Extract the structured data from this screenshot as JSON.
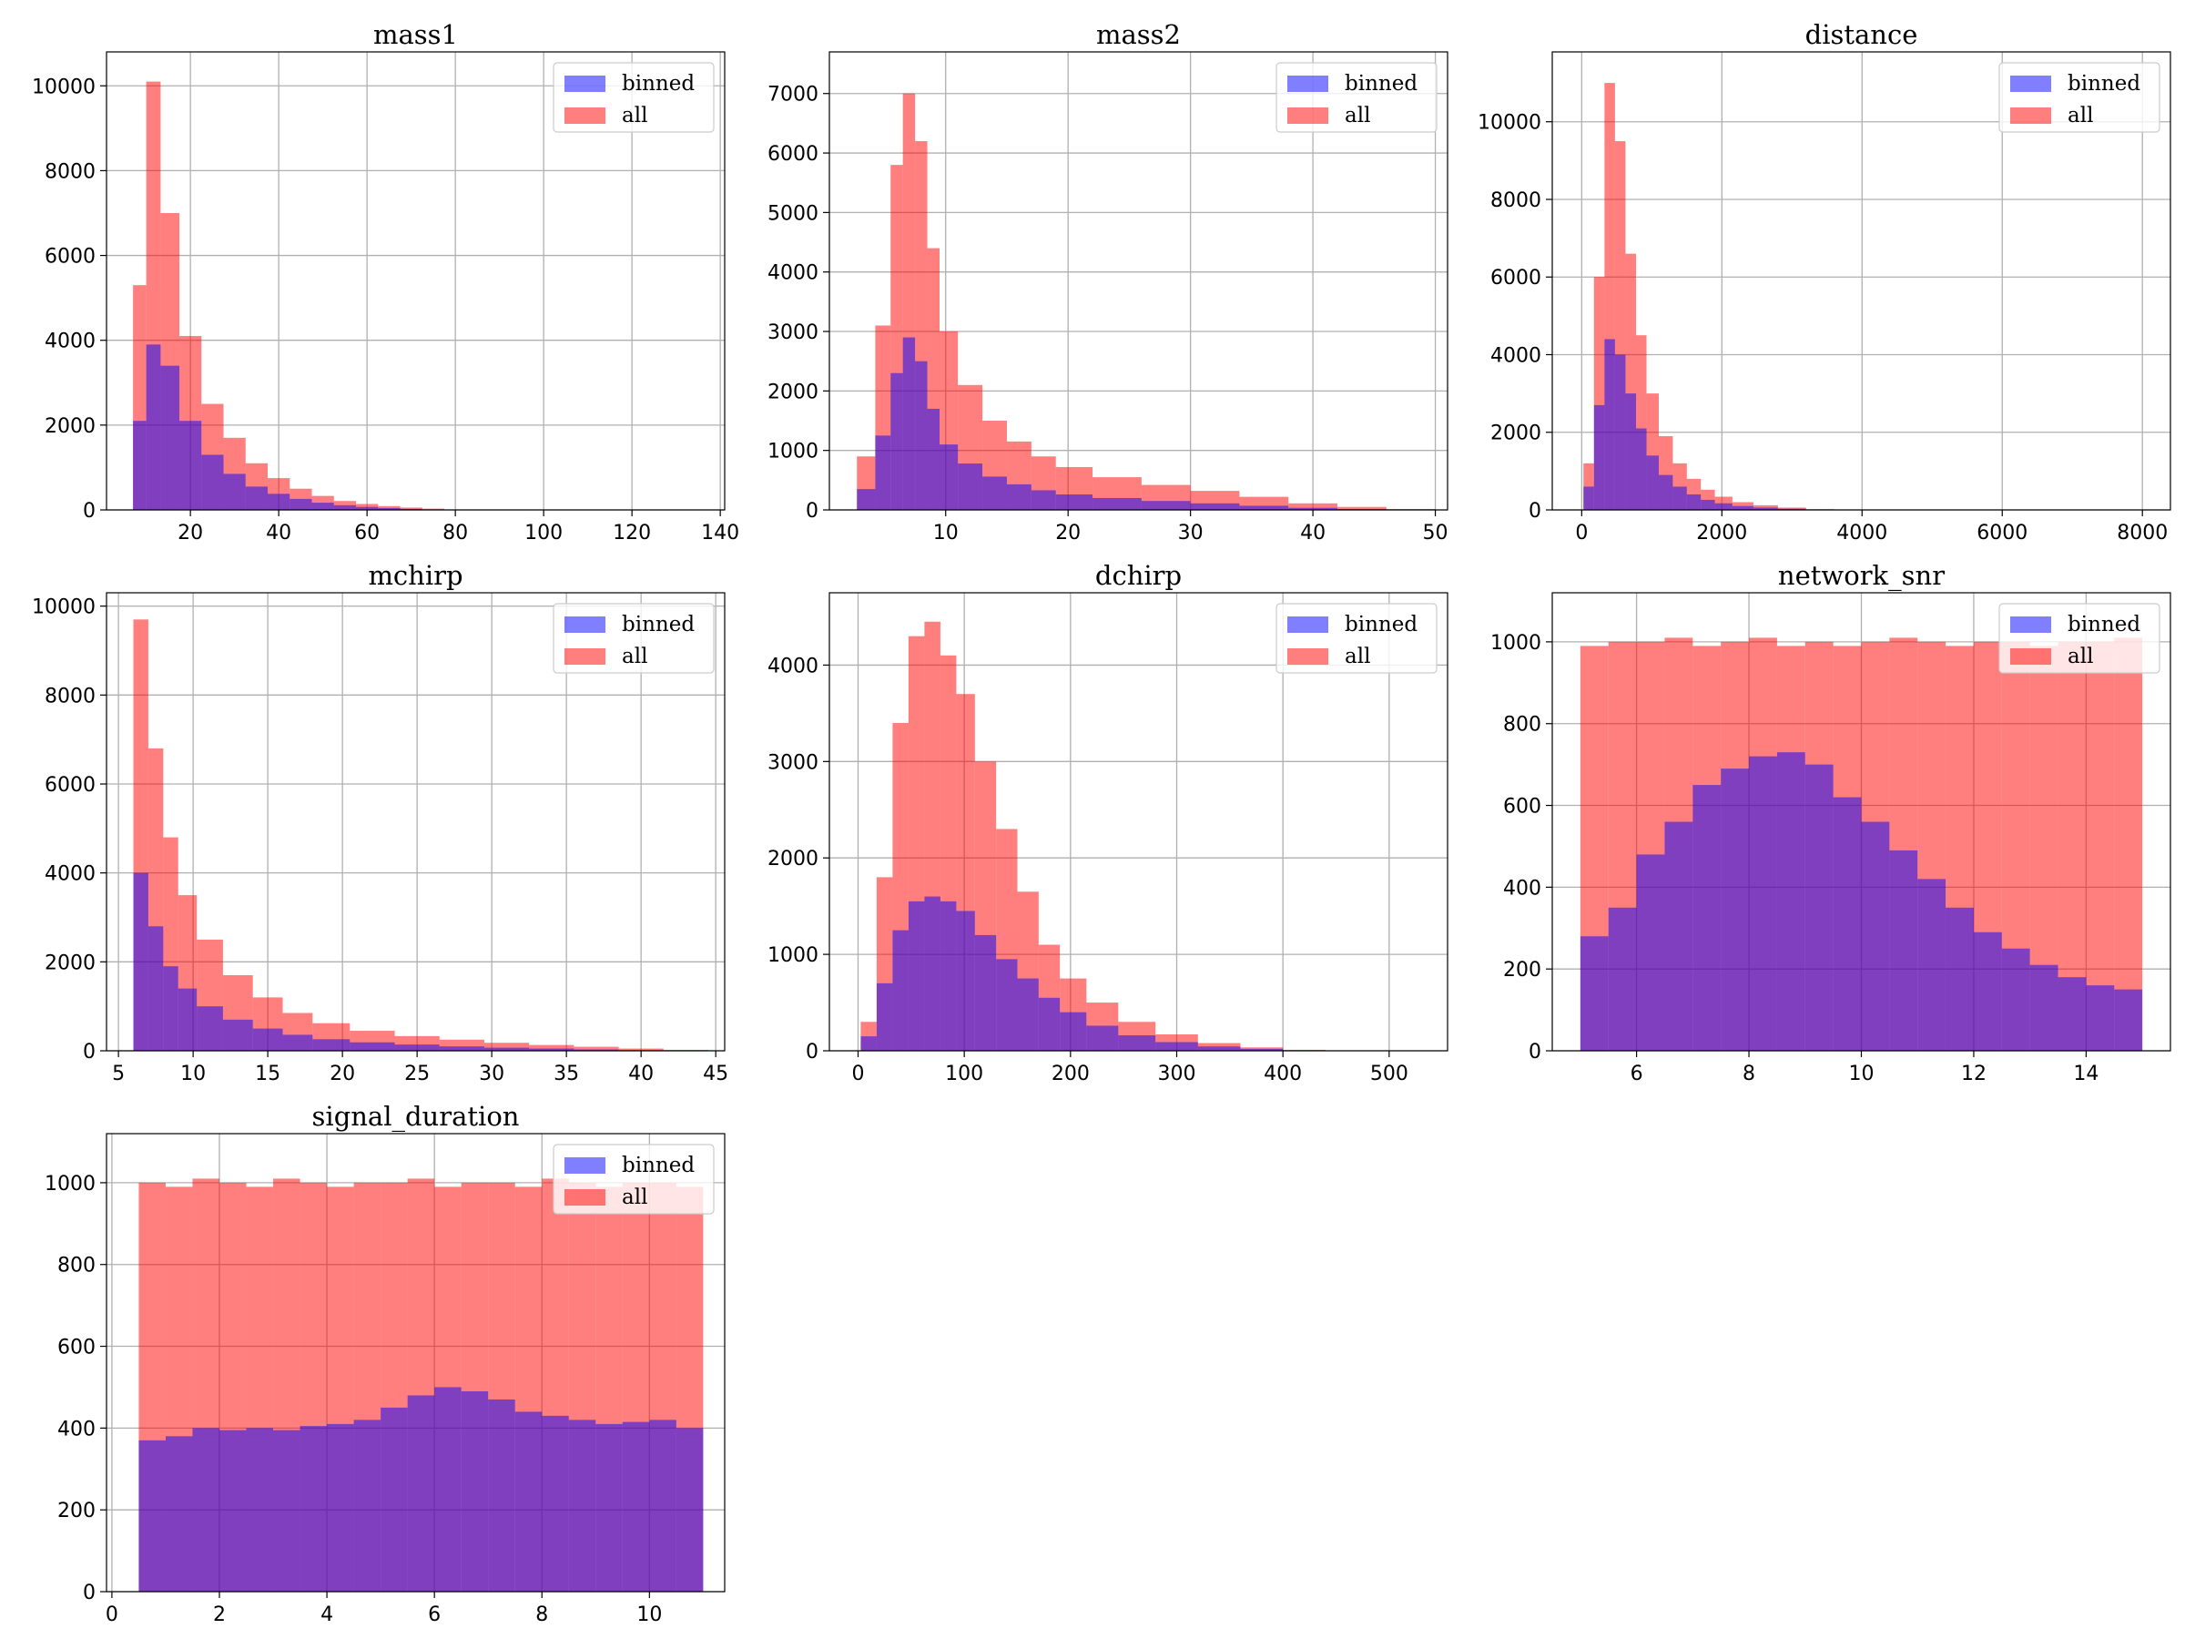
{
  "colors": {
    "binned": "#0000ff",
    "all": "#ff0000",
    "bar_opacity": 0.5
  },
  "legend": {
    "placement": "top-right",
    "entries": [
      "binned",
      "all"
    ]
  },
  "chart_data": [
    {
      "type": "bar",
      "title": "mass1",
      "grid": true,
      "xlim": [
        1,
        141
      ],
      "ylim": [
        0,
        10800
      ],
      "xticks": [
        20,
        40,
        60,
        80,
        100,
        120,
        140
      ],
      "yticks": [
        0,
        2000,
        4000,
        6000,
        8000,
        10000
      ],
      "x": [
        8.5,
        11.5,
        15,
        20,
        25,
        30,
        35,
        40,
        45,
        50,
        55,
        60,
        65,
        70,
        75,
        80
      ],
      "series": [
        {
          "name": "binned",
          "values": [
            2100,
            3900,
            3400,
            2100,
            1300,
            850,
            550,
            380,
            260,
            170,
            110,
            70,
            45,
            25,
            12,
            5
          ]
        },
        {
          "name": "all",
          "values": [
            5300,
            10100,
            7000,
            4100,
            2500,
            1700,
            1100,
            750,
            500,
            330,
            210,
            140,
            90,
            55,
            30,
            10
          ]
        }
      ]
    },
    {
      "type": "bar",
      "title": "mass2",
      "grid": true,
      "xlim": [
        0.5,
        51
      ],
      "ylim": [
        0,
        7700
      ],
      "xticks": [
        10,
        20,
        30,
        40,
        50
      ],
      "yticks": [
        0,
        1000,
        2000,
        3000,
        4000,
        5000,
        6000,
        7000
      ],
      "x": [
        3.5,
        5,
        6,
        7,
        8,
        9,
        10,
        12,
        14,
        16,
        18,
        20,
        24,
        28,
        32,
        36,
        40,
        44,
        48
      ],
      "series": [
        {
          "name": "binned",
          "values": [
            350,
            1250,
            2300,
            2900,
            2500,
            1700,
            1100,
            780,
            560,
            430,
            330,
            260,
            200,
            150,
            110,
            70,
            35,
            15,
            5
          ]
        },
        {
          "name": "all",
          "values": [
            900,
            3100,
            5800,
            7000,
            6200,
            4400,
            3000,
            2100,
            1500,
            1150,
            900,
            720,
            550,
            420,
            320,
            220,
            110,
            50,
            15
          ]
        }
      ]
    },
    {
      "type": "bar",
      "title": "distance",
      "grid": true,
      "xlim": [
        -420,
        8400
      ],
      "ylim": [
        0,
        11800
      ],
      "xticks": [
        0,
        2000,
        4000,
        6000,
        8000
      ],
      "yticks": [
        0,
        2000,
        4000,
        6000,
        8000,
        10000
      ],
      "x": [
        100,
        250,
        400,
        550,
        700,
        850,
        1000,
        1200,
        1400,
        1600,
        1800,
        2000,
        2300,
        2600,
        3000,
        3400
      ],
      "series": [
        {
          "name": "binned",
          "values": [
            600,
            2700,
            4400,
            4000,
            3000,
            2100,
            1400,
            900,
            600,
            400,
            260,
            170,
            100,
            60,
            30,
            10
          ]
        },
        {
          "name": "all",
          "values": [
            1200,
            6000,
            11000,
            9500,
            6600,
            4500,
            3000,
            1900,
            1200,
            800,
            520,
            340,
            200,
            120,
            60,
            20
          ]
        }
      ]
    },
    {
      "type": "bar",
      "title": "mchirp",
      "grid": true,
      "xlim": [
        4.2,
        45.6
      ],
      "ylim": [
        0,
        10300
      ],
      "xticks": [
        5,
        10,
        15,
        20,
        25,
        30,
        35,
        40,
        45
      ],
      "yticks": [
        0,
        2000,
        4000,
        6000,
        8000,
        10000
      ],
      "x": [
        6.5,
        7.5,
        8.5,
        9.5,
        11,
        13,
        15,
        17,
        19,
        22,
        25,
        28,
        31,
        34,
        37,
        40,
        43
      ],
      "series": [
        {
          "name": "binned",
          "values": [
            4000,
            2800,
            1900,
            1400,
            1000,
            700,
            500,
            360,
            260,
            190,
            140,
            100,
            70,
            50,
            30,
            15,
            5
          ]
        },
        {
          "name": "all",
          "values": [
            9700,
            6800,
            4800,
            3500,
            2500,
            1700,
            1200,
            850,
            620,
            450,
            330,
            250,
            180,
            130,
            90,
            50,
            20
          ]
        }
      ]
    },
    {
      "type": "bar",
      "title": "dchirp",
      "grid": true,
      "xlim": [
        -27,
        555
      ],
      "ylim": [
        0,
        4750
      ],
      "xticks": [
        0,
        100,
        200,
        300,
        400,
        500
      ],
      "yticks": [
        0,
        1000,
        2000,
        3000,
        4000
      ],
      "x": [
        10,
        25,
        40,
        55,
        70,
        85,
        100,
        120,
        140,
        160,
        180,
        200,
        230,
        260,
        300,
        340,
        380,
        420
      ],
      "series": [
        {
          "name": "binned",
          "values": [
            150,
            700,
            1250,
            1550,
            1600,
            1550,
            1450,
            1200,
            950,
            750,
            550,
            400,
            260,
            160,
            90,
            45,
            20,
            5
          ]
        },
        {
          "name": "all",
          "values": [
            300,
            1800,
            3400,
            4300,
            4450,
            4100,
            3700,
            3000,
            2300,
            1650,
            1100,
            750,
            500,
            300,
            170,
            80,
            35,
            10
          ]
        }
      ]
    },
    {
      "type": "bar",
      "title": "network_snr",
      "grid": true,
      "xlim": [
        4.5,
        15.5
      ],
      "ylim": [
        0,
        1120
      ],
      "xticks": [
        6,
        8,
        10,
        12,
        14
      ],
      "yticks": [
        0,
        200,
        400,
        600,
        800,
        1000
      ],
      "x": [
        5.25,
        5.75,
        6.25,
        6.75,
        7.25,
        7.75,
        8.25,
        8.75,
        9.25,
        9.75,
        10.25,
        10.75,
        11.25,
        11.75,
        12.25,
        12.75,
        13.25,
        13.75,
        14.25,
        14.75
      ],
      "series": [
        {
          "name": "binned",
          "values": [
            280,
            350,
            480,
            560,
            650,
            690,
            720,
            730,
            700,
            620,
            560,
            490,
            420,
            350,
            290,
            250,
            210,
            180,
            160,
            150
          ]
        },
        {
          "name": "all",
          "values": [
            990,
            1000,
            1000,
            1010,
            990,
            1000,
            1010,
            990,
            1000,
            990,
            1000,
            1010,
            1000,
            990,
            1000,
            1000,
            990,
            1000,
            1000,
            1010
          ]
        }
      ]
    },
    {
      "type": "bar",
      "title": "signal_duration",
      "grid": true,
      "xlim": [
        -0.1,
        11.4
      ],
      "ylim": [
        0,
        1120
      ],
      "xticks": [
        0,
        2,
        4,
        6,
        8,
        10
      ],
      "yticks": [
        0,
        200,
        400,
        600,
        800,
        1000
      ],
      "x": [
        0.75,
        1.25,
        1.75,
        2.25,
        2.75,
        3.25,
        3.75,
        4.25,
        4.75,
        5.25,
        5.75,
        6.25,
        6.75,
        7.25,
        7.75,
        8.25,
        8.75,
        9.25,
        9.75,
        10.25,
        10.75
      ],
      "series": [
        {
          "name": "binned",
          "values": [
            370,
            380,
            400,
            395,
            400,
            395,
            405,
            410,
            420,
            450,
            480,
            500,
            490,
            470,
            440,
            430,
            420,
            410,
            415,
            420,
            400
          ]
        },
        {
          "name": "all",
          "values": [
            1000,
            990,
            1010,
            1000,
            990,
            1010,
            1000,
            990,
            1000,
            1000,
            1010,
            990,
            1000,
            1000,
            990,
            1010,
            1000,
            990,
            1000,
            1000,
            990
          ]
        }
      ]
    }
  ]
}
